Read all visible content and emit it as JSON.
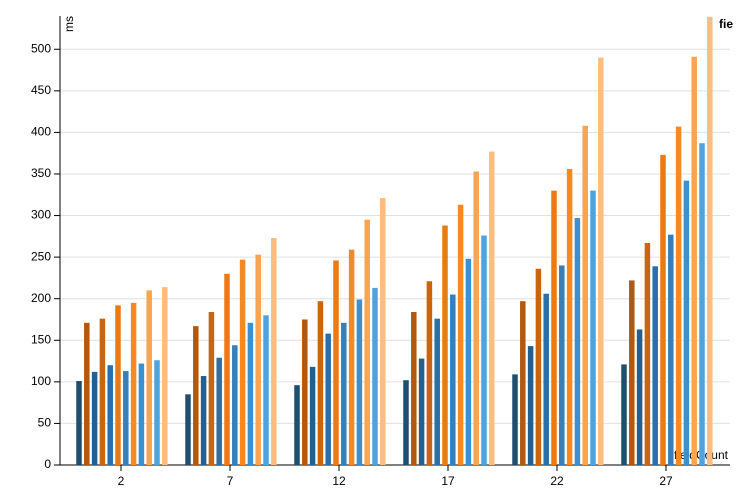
{
  "chart_data": {
    "type": "bar",
    "y_label": "ms",
    "x_label": "fieldCount",
    "legend_text": "fie",
    "categories": [
      "2",
      "7",
      "12",
      "17",
      "22",
      "27"
    ],
    "ylim": [
      0,
      540
    ],
    "yticks": [
      0,
      50,
      100,
      150,
      200,
      250,
      300,
      350,
      400,
      450,
      500
    ],
    "grid": true,
    "series": [
      {
        "color": "#1f4e6e",
        "values": [
          101,
          85,
          96,
          102,
          109,
          121
        ]
      },
      {
        "color": "#b3580f",
        "values": [
          171,
          167,
          175,
          184,
          197,
          222
        ]
      },
      {
        "color": "#23608f",
        "values": [
          112,
          107,
          118,
          128,
          143,
          163
        ]
      },
      {
        "color": "#c9650c",
        "values": [
          176,
          184,
          197,
          221,
          236,
          267
        ]
      },
      {
        "color": "#2a6fa8",
        "values": [
          120,
          129,
          158,
          176,
          206,
          239
        ]
      },
      {
        "color": "#ec7a12",
        "values": [
          192,
          230,
          246,
          288,
          330,
          373
        ]
      },
      {
        "color": "#3380bd",
        "values": [
          113,
          144,
          171,
          205,
          240,
          277
        ]
      },
      {
        "color": "#f58a24",
        "values": [
          195,
          247,
          259,
          313,
          356,
          407
        ]
      },
      {
        "color": "#3d90cf",
        "values": [
          122,
          171,
          199,
          248,
          297,
          342
        ]
      },
      {
        "color": "#f9a450",
        "values": [
          210,
          253,
          295,
          353,
          408,
          491
        ]
      },
      {
        "color": "#4da3de",
        "values": [
          126,
          180,
          213,
          276,
          330,
          387
        ]
      },
      {
        "color": "#fcbd80",
        "values": [
          214,
          273,
          321,
          377,
          490,
          539
        ]
      }
    ]
  }
}
